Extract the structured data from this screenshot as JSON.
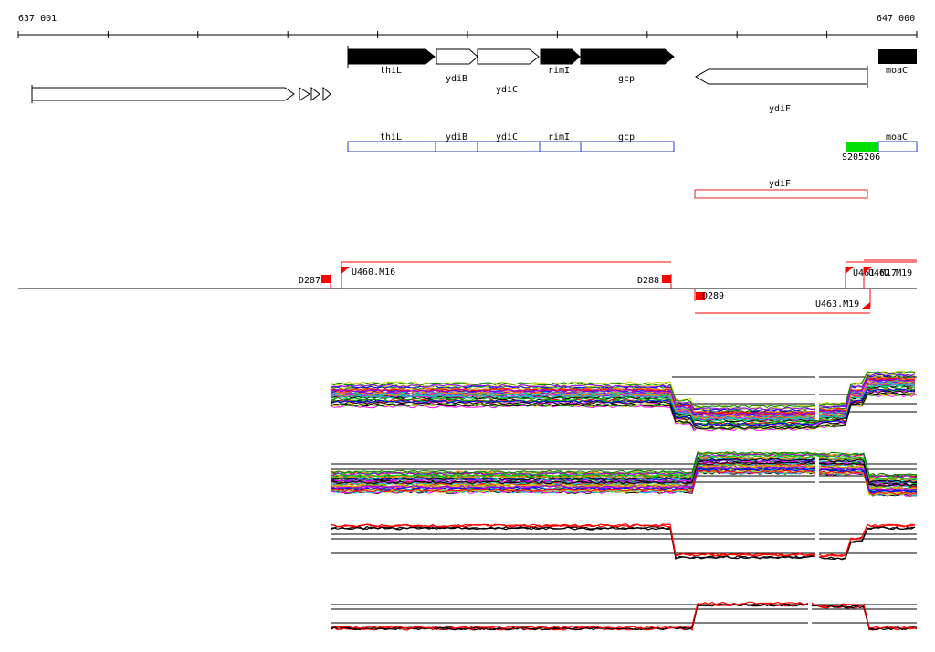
{
  "ruler": {
    "start_label": "637 001",
    "end_label": "647 000"
  },
  "genes_top": [
    {
      "name": "thiL",
      "filled": true
    },
    {
      "name": "ydiB",
      "filled": false
    },
    {
      "name": "ydiC",
      "filled": false
    },
    {
      "name": "rimI",
      "filled": true
    },
    {
      "name": "gcp",
      "filled": true
    },
    {
      "name": "ydiF",
      "filled": false
    },
    {
      "name": "moaC",
      "filled": true
    }
  ],
  "transcripts_fwd": [
    "thiL",
    "ydiB",
    "ydiC",
    "rimI",
    "gcp",
    "moaC"
  ],
  "highlight_label": "S205206",
  "transcripts_rev": [
    "ydiF"
  ],
  "features": [
    {
      "name": "D287"
    },
    {
      "name": "U460.M16"
    },
    {
      "name": "D288"
    },
    {
      "name": "D289"
    },
    {
      "name": "U463.M19"
    },
    {
      "name": "U461.M17"
    },
    {
      "name": "U462.M19"
    }
  ],
  "colors": {
    "gene_fill": "#000000",
    "transcript_stroke": "#1f3fbf",
    "highlight": "#00e000",
    "feature": "#ff0000",
    "rev_transcript": "#e02020"
  },
  "tracks": {
    "count": 4,
    "palette": [
      "#ff0000",
      "#00cc00",
      "#0000ff",
      "#ff00ff",
      "#00cccc",
      "#cccc00",
      "#ff8800",
      "#8800ff",
      "#008800",
      "#000000"
    ]
  }
}
